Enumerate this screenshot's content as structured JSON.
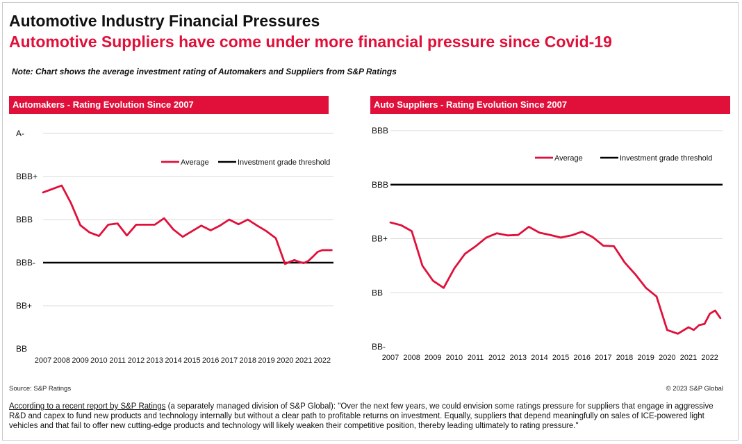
{
  "title": "Automotive Industry Financial Pressures",
  "subtitle": "Automotive Suppliers have come under more financial pressure since Covid-19",
  "note": "Note: Chart shows the average investment rating of Automakers and Suppliers from S&P Ratings",
  "source": "Source: S&P Ratings",
  "copyright": "© 2023 S&P Global",
  "footer": {
    "link_text": "According to a recent report by S&P Ratings",
    "body": " (a separately managed division of S&P Global): \"Over the next few years, we could envision some ratings pressure for suppliers that engage in aggressive R&D and capex to fund new products and technology internally but without a clear path to profitable returns on investment. Equally, suppliers that depend meaningfully on sales of ICE-powered light vehicles and that fail to offer new cutting-edge products and technology will likely weaken their competitive position, thereby leading ultimately to rating pressure.\""
  },
  "colors": {
    "accent": "#e0103a",
    "threshold": "#000000",
    "grid": "#d9d9d9"
  },
  "chart_data": [
    {
      "type": "line",
      "title": "Automakers - Rating Evolution Since 2007",
      "y_scale": [
        "BB",
        "BB+",
        "BBB-",
        "BBB",
        "BBB+",
        "A-"
      ],
      "ylim": [
        0,
        5
      ],
      "xlim": [
        2007,
        2022.6
      ],
      "x_ticks": [
        "2007",
        "2008",
        "2009",
        "2010",
        "2011",
        "2012",
        "2013",
        "2014",
        "2015",
        "2016",
        "2017",
        "2018",
        "2019",
        "2020",
        "2021",
        "2022"
      ],
      "threshold": {
        "name": "Investment grade threshold",
        "y": 2
      },
      "legend": [
        "Average",
        "Investment grade threshold"
      ],
      "series": [
        {
          "name": "Average",
          "x": [
            2007.0,
            2007.5,
            2008.0,
            2008.5,
            2009.0,
            2009.5,
            2010.0,
            2010.5,
            2011.0,
            2011.5,
            2012.0,
            2012.5,
            2013.0,
            2013.5,
            2014.0,
            2014.5,
            2015.0,
            2015.5,
            2016.0,
            2016.5,
            2017.0,
            2017.5,
            2018.0,
            2018.5,
            2019.0,
            2019.5,
            2020.0,
            2020.25,
            2020.5,
            2020.75,
            2021.0,
            2021.25,
            2021.5,
            2021.75,
            2022.0,
            2022.25,
            2022.5
          ],
          "y": [
            3.63,
            3.71,
            3.79,
            3.38,
            2.87,
            2.7,
            2.62,
            2.88,
            2.91,
            2.63,
            2.88,
            2.88,
            2.88,
            3.03,
            2.77,
            2.6,
            2.73,
            2.86,
            2.75,
            2.86,
            3.0,
            2.89,
            3.0,
            2.86,
            2.73,
            2.57,
            1.97,
            2.02,
            2.06,
            2.02,
            1.99,
            2.04,
            2.14,
            2.25,
            2.29,
            2.29,
            2.29
          ]
        }
      ]
    },
    {
      "type": "line",
      "title": "Auto Suppliers - Rating Evolution Since 2007",
      "y_scale": [
        "BB-",
        "BB",
        "BB+",
        "BBB",
        "BBB"
      ],
      "ylim": [
        0,
        4
      ],
      "xlim": [
        2007,
        2022.6
      ],
      "x_ticks": [
        "2007",
        "2008",
        "2009",
        "2010",
        "2011",
        "2012",
        "2013",
        "2014",
        "2015",
        "2016",
        "2017",
        "2018",
        "2019",
        "2020",
        "2021",
        "2022"
      ],
      "threshold": {
        "name": "Investment grade threshold",
        "y": 3
      },
      "legend": [
        "Average",
        "Investment grade threshold"
      ],
      "series": [
        {
          "name": "Average",
          "x": [
            2007.0,
            2007.5,
            2008.0,
            2008.5,
            2009.0,
            2009.5,
            2010.0,
            2010.5,
            2011.0,
            2011.5,
            2012.0,
            2012.5,
            2013.0,
            2013.5,
            2014.0,
            2014.5,
            2015.0,
            2015.5,
            2016.0,
            2016.5,
            2017.0,
            2017.5,
            2018.0,
            2018.5,
            2019.0,
            2019.5,
            2020.0,
            2020.5,
            2021.0,
            2021.25,
            2021.5,
            2021.75,
            2022.0,
            2022.25,
            2022.5
          ],
          "y": [
            2.3,
            2.25,
            2.14,
            1.5,
            1.22,
            1.09,
            1.45,
            1.72,
            1.86,
            2.02,
            2.1,
            2.06,
            2.07,
            2.22,
            2.11,
            2.07,
            2.02,
            2.06,
            2.13,
            2.03,
            1.87,
            1.86,
            1.56,
            1.34,
            1.09,
            0.93,
            0.31,
            0.24,
            0.36,
            0.31,
            0.4,
            0.42,
            0.61,
            0.67,
            0.53
          ]
        }
      ]
    }
  ]
}
